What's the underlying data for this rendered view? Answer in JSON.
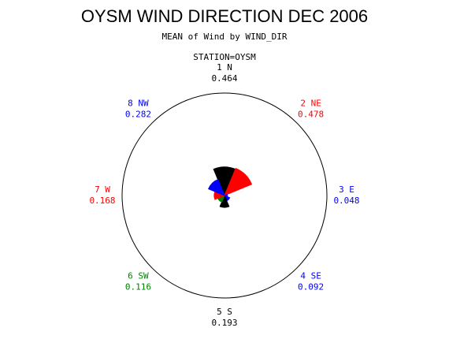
{
  "chart_data": {
    "type": "star",
    "title": "OYSM WIND DIRECTION DEC 2006",
    "subtitle": "MEAN of Wind by WIND_DIR",
    "group_label": "STATION=OYSM",
    "categories": [
      "1 N",
      "2 NE",
      "3 E",
      "4 SE",
      "5 S",
      "6 SW",
      "7 W",
      "8 NW"
    ],
    "values": [
      0.464,
      0.478,
      0.048,
      0.092,
      0.193,
      0.116,
      0.168,
      0.282
    ],
    "colors": [
      "#000000",
      "#ff0000",
      "#0000ff",
      "#0000ff",
      "#000000",
      "#008000",
      "#ff0000",
      "#0000ff"
    ]
  }
}
